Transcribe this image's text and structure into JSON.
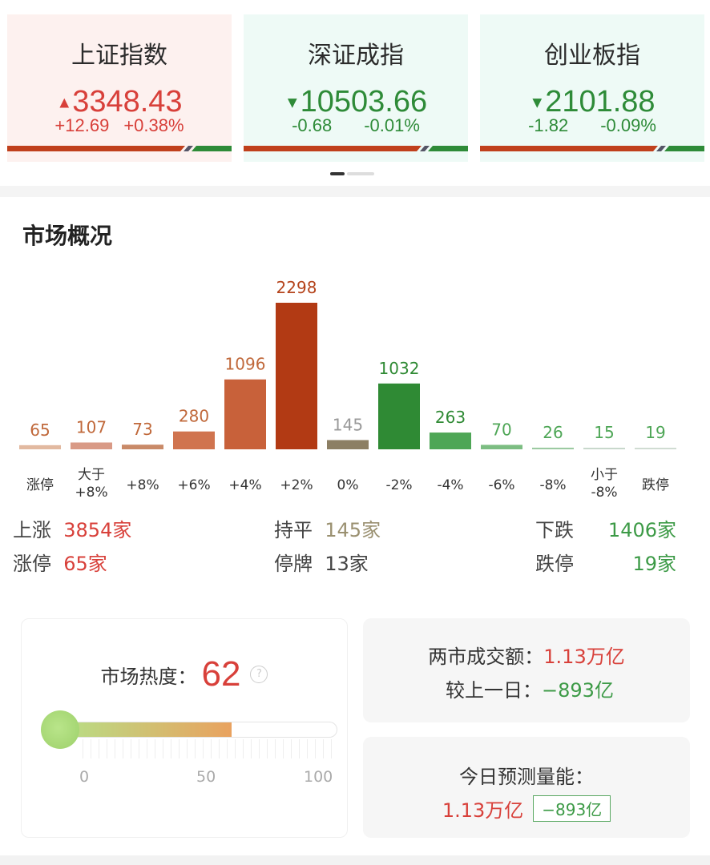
{
  "indices": [
    {
      "name": "上证指数",
      "arrow": "▲",
      "price": "3348.43",
      "change": "+12.69",
      "pct": "+0.38%",
      "dir": "up"
    },
    {
      "name": "深证成指",
      "arrow": "▼",
      "price": "10503.66",
      "change": "-0.68",
      "pct": "-0.01%",
      "dir": "down"
    },
    {
      "name": "创业板指",
      "arrow": "▼",
      "price": "2101.88",
      "change": "-1.82",
      "pct": "-0.09%",
      "dir": "down"
    }
  ],
  "colors": {
    "up": "#d8403a",
    "down": "#2e8b38",
    "flat": "#8c7f64"
  },
  "section_title": "市场概况",
  "chart_data": {
    "type": "bar",
    "categories": [
      "涨停",
      "大于\n+8%",
      "+8%",
      "+6%",
      "+4%",
      "+2%",
      "0%",
      "-2%",
      "-4%",
      "-6%",
      "-8%",
      "小于\n-8%",
      "跌停"
    ],
    "values": [
      65,
      107,
      73,
      280,
      1096,
      2298,
      145,
      1032,
      263,
      70,
      26,
      15,
      19
    ],
    "bar_colors": [
      "#e2b9a0",
      "#d99a86",
      "#c98a68",
      "#d0744f",
      "#c8613a",
      "#b23a14",
      "#8c7f64",
      "#2f8a34",
      "#4ea656",
      "#7cbd82",
      "#9ccaa2",
      "#c8d8cc",
      "#d0dcd2"
    ],
    "label_colors": [
      "#c0683a",
      "#c0683a",
      "#c0683a",
      "#c0683a",
      "#c0683a",
      "#b5441c",
      "#999",
      "#2f8a34",
      "#2f8a34",
      "#4ea656",
      "#4ea656",
      "#4ea656",
      "#4ea656"
    ],
    "ylim": [
      0,
      2298
    ],
    "grid": false
  },
  "summary": {
    "up_label": "上涨",
    "up_value": "3854家",
    "flat_label": "持平",
    "flat_value": "145家",
    "down_label": "下跌",
    "down_value": "1406家",
    "limit_up_label": "涨停",
    "limit_up_value": "65家",
    "suspended_label": "停牌",
    "suspended_value": "13家",
    "limit_down_label": "跌停",
    "limit_down_value": "19家"
  },
  "heat": {
    "label": "市场热度：",
    "value": "62",
    "level": 62,
    "ticks": [
      "0",
      "50",
      "100"
    ],
    "help": "?"
  },
  "turnover": {
    "label": "两市成交额：",
    "value": "1.13万亿",
    "prev_label": "较上一日：",
    "prev_value": "−893亿"
  },
  "forecast": {
    "label": "今日预测量能：",
    "value": "1.13万亿",
    "delta": "−893亿"
  }
}
